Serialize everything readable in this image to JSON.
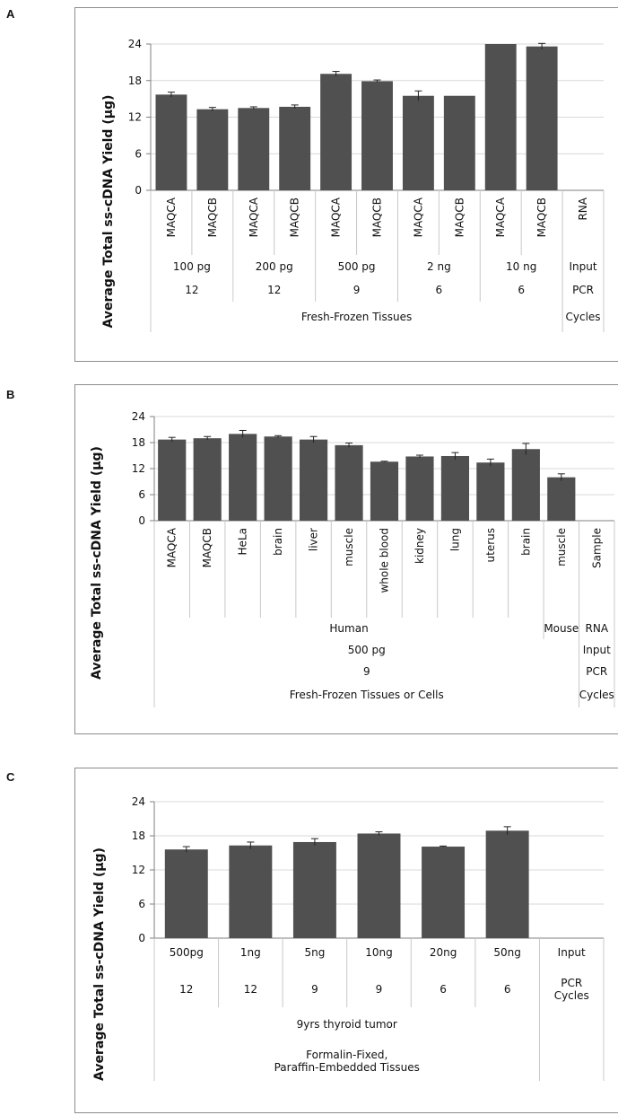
{
  "colors": {
    "bar": "#505050",
    "grid": "#d9d9d9",
    "axis": "#7f7f7f",
    "table": "#c8c8c8"
  },
  "chart_data": [
    {
      "panel": "A",
      "type": "bar",
      "ylabel": "Average Total ss-cDNA Yield (µg)",
      "ylim": [
        0,
        24
      ],
      "yticks": [
        "0",
        "6",
        "12",
        "18",
        "24"
      ],
      "grid": true,
      "categories": [
        "MAQCA",
        "MAQCB",
        "MAQCA",
        "MAQCB",
        "MAQCA",
        "MAQCB",
        "MAQCA",
        "MAQCB",
        "MAQCA",
        "MAQCB",
        "RNA"
      ],
      "values": [
        15.7,
        13.3,
        13.5,
        13.7,
        19.1,
        17.9,
        15.5,
        15.5,
        24.0,
        23.6,
        null
      ],
      "errors": [
        0.4,
        0.3,
        0.2,
        0.3,
        0.4,
        0.2,
        0.8,
        0.0,
        0.0,
        0.5,
        null
      ],
      "table_rows": [
        [
          {
            "text": "100 pg",
            "span": 2
          },
          {
            "text": "200 pg",
            "span": 2
          },
          {
            "text": "500 pg",
            "span": 2
          },
          {
            "text": "2 ng",
            "span": 2
          },
          {
            "text": "10 ng",
            "span": 2
          },
          {
            "text": "Input",
            "span": 1
          }
        ],
        [
          {
            "text": "12",
            "span": 2
          },
          {
            "text": "12",
            "span": 2
          },
          {
            "text": "9",
            "span": 2
          },
          {
            "text": "6",
            "span": 2
          },
          {
            "text": "6",
            "span": 2
          },
          {
            "text": "PCR",
            "span": 1
          }
        ],
        [
          {
            "text": "Fresh-Frozen Tissues",
            "span": 10
          },
          {
            "text": "Cycles",
            "span": 1
          }
        ]
      ]
    },
    {
      "panel": "B",
      "type": "bar",
      "ylabel": "Average Total ss-cDNA Yield (µg)",
      "ylim": [
        0,
        24
      ],
      "yticks": [
        "0",
        "6",
        "12",
        "18",
        "24"
      ],
      "grid": true,
      "categories": [
        "MAQCA",
        "MAQCB",
        "HeLa",
        "brain",
        "liver",
        "muscle",
        "whole blood",
        "kidney",
        "lung",
        "uterus",
        "brain",
        "muscle",
        "Sample"
      ],
      "values": [
        18.7,
        19.0,
        20.0,
        19.4,
        18.7,
        17.4,
        13.6,
        14.8,
        14.9,
        13.4,
        16.5,
        10.0,
        null
      ],
      "errors": [
        0.5,
        0.4,
        0.8,
        0.2,
        0.7,
        0.5,
        0.1,
        0.3,
        0.8,
        0.8,
        1.3,
        0.8,
        null
      ],
      "table_rows": [
        [
          {
            "text": "Human",
            "span": 11
          },
          {
            "text": "Mouse",
            "span": 1
          },
          {
            "text": "RNA",
            "span": 1
          }
        ],
        [
          {
            "text": "500 pg",
            "span": 12
          },
          {
            "text": "Input",
            "span": 1
          }
        ],
        [
          {
            "text": "9",
            "span": 12
          },
          {
            "text": "PCR",
            "span": 1
          }
        ],
        [
          {
            "text": "Fresh-Frozen Tissues or Cells",
            "span": 12
          },
          {
            "text": "Cycles",
            "span": 1
          }
        ]
      ]
    },
    {
      "panel": "C",
      "type": "bar",
      "ylabel": "Average Total ss-cDNA Yield (µg)",
      "ylim": [
        0,
        24
      ],
      "yticks": [
        "0",
        "6",
        "12",
        "18",
        "24"
      ],
      "grid": true,
      "categories": [
        "500pg",
        "1ng",
        "5ng",
        "10ng",
        "20ng",
        "50ng",
        "Input"
      ],
      "values": [
        15.6,
        16.3,
        16.9,
        18.4,
        16.1,
        18.9,
        null
      ],
      "errors": [
        0.5,
        0.6,
        0.6,
        0.3,
        0.1,
        0.7,
        null
      ],
      "table_rows": [
        [
          {
            "text": "12",
            "span": 1
          },
          {
            "text": "12",
            "span": 1
          },
          {
            "text": "9",
            "span": 1
          },
          {
            "text": "9",
            "span": 1
          },
          {
            "text": "6",
            "span": 1
          },
          {
            "text": "6",
            "span": 1
          },
          {
            "text": "PCR\nCycles",
            "span": 1
          }
        ],
        [
          {
            "text": "9yrs thyroid tumor",
            "span": 6
          },
          {
            "text": "",
            "span": 1
          }
        ],
        [
          {
            "text": "Formalin-Fixed,\nParaffin-Embedded Tissues",
            "span": 6
          },
          {
            "text": "",
            "span": 1
          }
        ]
      ]
    }
  ]
}
